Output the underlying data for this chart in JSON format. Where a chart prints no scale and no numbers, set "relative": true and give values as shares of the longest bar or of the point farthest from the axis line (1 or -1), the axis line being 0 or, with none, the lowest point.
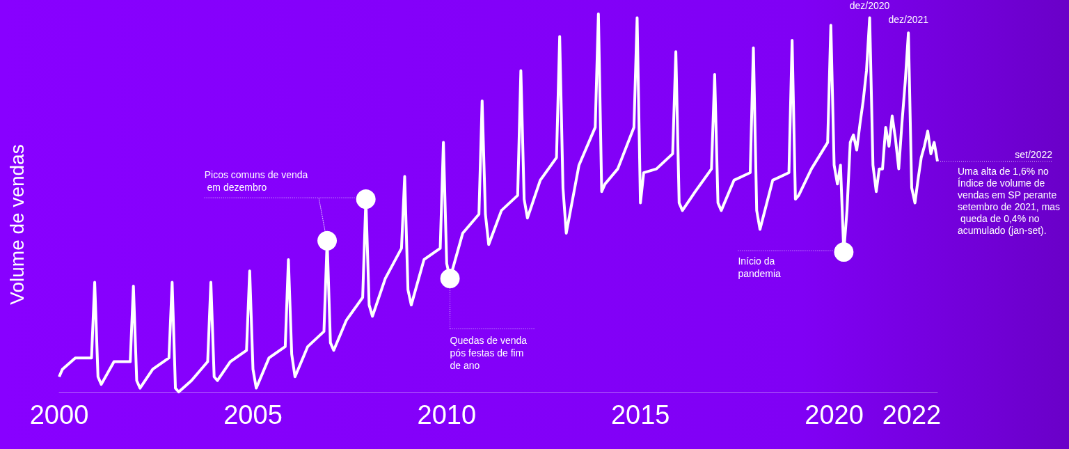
{
  "chart_data": {
    "type": "line",
    "relative": true,
    "ylabel": "Volume de vendas",
    "xlim": [
      "2000-01",
      "2022-09"
    ],
    "xticks": [
      "2000",
      "2005",
      "2010",
      "2015",
      "2020",
      "2022"
    ],
    "grid": false,
    "line_style": "solid",
    "series": [
      {
        "color": "#ffffff",
        "x": [
          "2000-01",
          "2000-02",
          "2000-06",
          "2000-11",
          "2000-12",
          "2001-01",
          "2001-02",
          "2001-06",
          "2001-11",
          "2001-12",
          "2002-01",
          "2002-02",
          "2002-06",
          "2002-11",
          "2002-12",
          "2003-01",
          "2003-02",
          "2003-06",
          "2003-11",
          "2003-12",
          "2004-01",
          "2004-02",
          "2004-06",
          "2004-11",
          "2004-12",
          "2005-01",
          "2005-02",
          "2005-06",
          "2005-11",
          "2005-12",
          "2006-01",
          "2006-02",
          "2006-06",
          "2006-11",
          "2006-12",
          "2007-01",
          "2007-02",
          "2007-06",
          "2007-11",
          "2007-12",
          "2008-01",
          "2008-02",
          "2008-06",
          "2008-11",
          "2008-12",
          "2009-01",
          "2009-02",
          "2009-06",
          "2009-11",
          "2009-12",
          "2010-01",
          "2010-02",
          "2010-06",
          "2010-11",
          "2010-12",
          "2011-01",
          "2011-02",
          "2011-06",
          "2011-11",
          "2011-12",
          "2012-01",
          "2012-02",
          "2012-06",
          "2012-11",
          "2012-12",
          "2013-01",
          "2013-02",
          "2013-06",
          "2013-11",
          "2013-12",
          "2014-01",
          "2014-02",
          "2014-06",
          "2014-11",
          "2014-12",
          "2015-01",
          "2015-02",
          "2015-06",
          "2015-11",
          "2015-12",
          "2016-01",
          "2016-02",
          "2016-06",
          "2016-11",
          "2016-12",
          "2017-01",
          "2017-02",
          "2017-06",
          "2017-11",
          "2017-12",
          "2018-01",
          "2018-02",
          "2018-06",
          "2018-11",
          "2018-12",
          "2019-01",
          "2019-02",
          "2019-06",
          "2019-11",
          "2019-12",
          "2020-01",
          "2020-02",
          "2020-03",
          "2020-04",
          "2020-05",
          "2020-06",
          "2020-07",
          "2020-08",
          "2020-09",
          "2020-10",
          "2020-11",
          "2020-12",
          "2021-01",
          "2021-02",
          "2021-03",
          "2021-04",
          "2021-05",
          "2021-06",
          "2021-07",
          "2021-08",
          "2021-09",
          "2021-10",
          "2021-11",
          "2021-12",
          "2022-01",
          "2022-02",
          "2022-03",
          "2022-04",
          "2022-05",
          "2022-06",
          "2022-07",
          "2022-08",
          "2022-09"
        ],
        "values": [
          0.04,
          0.06,
          0.09,
          0.09,
          0.29,
          0.04,
          0.02,
          0.08,
          0.08,
          0.28,
          0.03,
          0.01,
          0.06,
          0.09,
          0.29,
          0.01,
          0,
          0.03,
          0.08,
          0.29,
          0.04,
          0.03,
          0.08,
          0.11,
          0.32,
          0.06,
          0.01,
          0.09,
          0.12,
          0.35,
          0.1,
          0.04,
          0.12,
          0.16,
          0.4,
          0.13,
          0.11,
          0.19,
          0.25,
          0.51,
          0.23,
          0.2,
          0.3,
          0.38,
          0.57,
          0.27,
          0.23,
          0.35,
          0.38,
          0.66,
          0.34,
          0.3,
          0.42,
          0.47,
          0.77,
          0.47,
          0.39,
          0.48,
          0.52,
          0.85,
          0.51,
          0.46,
          0.56,
          0.62,
          0.94,
          0.54,
          0.42,
          0.6,
          0.7,
          1.0,
          0.53,
          0.55,
          0.59,
          0.7,
          0.99,
          0.5,
          0.58,
          0.59,
          0.63,
          0.9,
          0.5,
          0.48,
          0.53,
          0.59,
          0.84,
          0.5,
          0.48,
          0.56,
          0.58,
          0.91,
          0.48,
          0.43,
          0.56,
          0.58,
          0.93,
          0.51,
          0.52,
          0.59,
          0.66,
          0.97,
          0.6,
          0.55,
          0.6,
          0.37,
          0.48,
          0.66,
          0.68,
          0.64,
          0.71,
          0.77,
          0.85,
          0.99,
          0.6,
          0.53,
          0.59,
          0.59,
          0.7,
          0.65,
          0.73,
          0.67,
          0.59,
          0.71,
          0.82,
          0.95,
          0.54,
          0.5,
          0.56,
          0.62,
          0.65,
          0.69,
          0.63,
          0.66,
          0.61
        ]
      },
      {
        "type": "scatter",
        "marker": "circle",
        "color": "#ffffff",
        "x": [
          "2006-12",
          "2007-12",
          "2010-02",
          "2020-04"
        ],
        "values": [
          0.4,
          0.51,
          0.3,
          0.37
        ]
      }
    ],
    "annotations": [
      "Picos comuns de venda em dezembro",
      "Quedas de venda pós festas de fim de ano",
      "Início da pandemia",
      {
        "text": "dez/2020",
        "x": "2020-12",
        "y": 0.99
      },
      {
        "text": "dez/2021",
        "x": "2021-12",
        "y": 0.95
      },
      {
        "text": "set/2022",
        "x": "2022-09",
        "y": 0.61
      },
      "Uma alta de 1,6% no Índice de volume de vendas em SP perante setembro de 2021, mas queda de 0,4% no acumulado (jan-set)."
    ]
  }
}
